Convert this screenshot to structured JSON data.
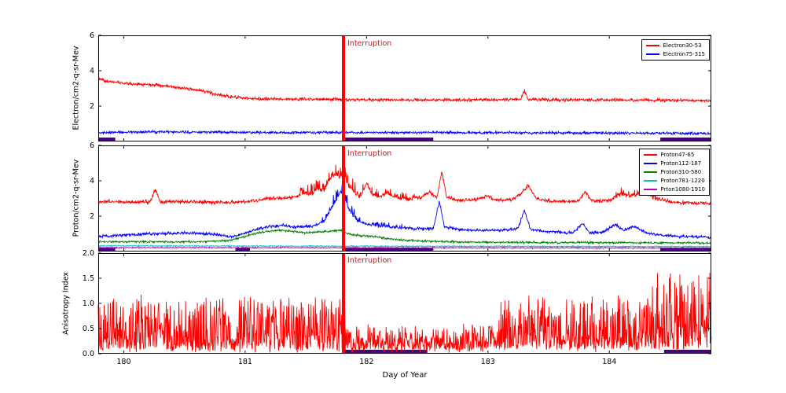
{
  "figure": {
    "background": "#ffffff",
    "axis_color": "#000000",
    "interruption_color": "#ff0000",
    "gap_bar_color": "#4b0082"
  },
  "chart_data": [
    {
      "type": "line",
      "ylabel": "Electron/cm2-q-sr-Mev",
      "annotation": "Interruption",
      "interruption_x": 181.81,
      "xlim": [
        179.79,
        184.84
      ],
      "ylim": [
        0,
        6
      ],
      "yticks": [
        2,
        4,
        6
      ],
      "ytick_decimals": 0,
      "xticks": [
        180,
        181,
        182,
        183,
        184
      ],
      "xtick_labels_visible": false,
      "legend_position": "upper right",
      "grid": false,
      "gap_bars": [
        [
          179.79,
          179.93
        ],
        [
          181.81,
          182.55
        ],
        [
          184.42,
          184.84
        ]
      ],
      "series": [
        {
          "name": "Electron30-53",
          "color": "#ff0000",
          "seed": 11,
          "noise": 0.05,
          "keypoints": [
            [
              179.79,
              3.55
            ],
            [
              179.88,
              3.38
            ],
            [
              180.0,
              3.3
            ],
            [
              180.15,
              3.22
            ],
            [
              180.3,
              3.18
            ],
            [
              180.45,
              3.05
            ],
            [
              180.6,
              2.92
            ],
            [
              180.7,
              2.78
            ],
            [
              180.8,
              2.62
            ],
            [
              180.9,
              2.52
            ],
            [
              181.0,
              2.45
            ],
            [
              181.15,
              2.42
            ],
            [
              181.3,
              2.4
            ],
            [
              181.6,
              2.38
            ],
            [
              182.0,
              2.36
            ],
            [
              182.5,
              2.35
            ],
            [
              183.0,
              2.36
            ],
            [
              183.27,
              2.38
            ],
            [
              183.3,
              2.88
            ],
            [
              183.33,
              2.38
            ],
            [
              183.6,
              2.35
            ],
            [
              184.0,
              2.35
            ],
            [
              184.5,
              2.33
            ],
            [
              184.84,
              2.3
            ]
          ],
          "bursts": []
        },
        {
          "name": "Electron75-315",
          "color": "#0000ff",
          "seed": 22,
          "noise": 0.045,
          "keypoints": [
            [
              179.79,
              0.5
            ],
            [
              180.3,
              0.55
            ],
            [
              180.8,
              0.52
            ],
            [
              181.3,
              0.5
            ],
            [
              182.0,
              0.5
            ],
            [
              183.0,
              0.5
            ],
            [
              184.0,
              0.48
            ],
            [
              184.84,
              0.45
            ]
          ],
          "bursts": []
        }
      ]
    },
    {
      "type": "line",
      "ylabel": "Proton/cm2-q-sr-Mev",
      "annotation": "Interruption",
      "interruption_x": 181.81,
      "xlim": [
        179.79,
        184.84
      ],
      "ylim": [
        0,
        6
      ],
      "yticks": [
        2,
        4,
        6
      ],
      "ytick_decimals": 0,
      "xticks": [
        180,
        181,
        182,
        183,
        184
      ],
      "xtick_labels_visible": false,
      "legend_position": "upper right",
      "grid": false,
      "gap_bars": [
        [
          179.79,
          179.93
        ],
        [
          180.92,
          181.04
        ],
        [
          181.81,
          182.55
        ],
        [
          184.42,
          184.84
        ]
      ],
      "series": [
        {
          "name": "Proton47-65",
          "color": "#ff0000",
          "seed": 31,
          "noise": 0.06,
          "keypoints": [
            [
              179.79,
              2.82
            ],
            [
              180.1,
              2.8
            ],
            [
              180.22,
              2.82
            ],
            [
              180.26,
              3.55
            ],
            [
              180.3,
              2.82
            ],
            [
              180.6,
              2.8
            ],
            [
              180.9,
              2.78
            ],
            [
              181.05,
              2.85
            ],
            [
              181.2,
              3.0
            ],
            [
              181.35,
              3.05
            ],
            [
              181.45,
              3.15
            ],
            [
              181.5,
              3.3
            ],
            [
              181.55,
              3.2
            ],
            [
              181.6,
              3.55
            ],
            [
              181.65,
              3.4
            ],
            [
              181.7,
              4.1
            ],
            [
              181.74,
              4.35
            ],
            [
              181.78,
              4.1
            ],
            [
              181.81,
              4.3
            ],
            [
              181.85,
              3.7
            ],
            [
              181.9,
              3.3
            ],
            [
              181.95,
              3.1
            ],
            [
              182.0,
              3.85
            ],
            [
              182.04,
              3.3
            ],
            [
              182.1,
              3.05
            ],
            [
              182.17,
              3.3
            ],
            [
              182.25,
              3.0
            ],
            [
              182.35,
              2.95
            ],
            [
              182.45,
              3.05
            ],
            [
              182.52,
              3.35
            ],
            [
              182.58,
              3.0
            ],
            [
              182.62,
              4.55
            ],
            [
              182.66,
              3.1
            ],
            [
              182.75,
              2.9
            ],
            [
              182.9,
              2.95
            ],
            [
              183.0,
              3.15
            ],
            [
              183.06,
              2.9
            ],
            [
              183.2,
              2.95
            ],
            [
              183.28,
              3.3
            ],
            [
              183.33,
              3.75
            ],
            [
              183.4,
              3.0
            ],
            [
              183.5,
              2.85
            ],
            [
              183.75,
              2.85
            ],
            [
              183.8,
              3.4
            ],
            [
              183.86,
              2.85
            ],
            [
              184.0,
              2.9
            ],
            [
              184.1,
              3.25
            ],
            [
              184.18,
              3.1
            ],
            [
              184.28,
              3.3
            ],
            [
              184.38,
              3.0
            ],
            [
              184.5,
              2.8
            ],
            [
              184.7,
              2.75
            ],
            [
              184.84,
              2.72
            ]
          ],
          "bursts": [
            [
              181.45,
              181.98,
              0.7,
              4
            ],
            [
              182.0,
              182.4,
              0.4,
              5
            ],
            [
              184.05,
              184.4,
              0.35,
              5
            ]
          ]
        },
        {
          "name": "Proton112-187",
          "color": "#0000ff",
          "seed": 32,
          "noise": 0.05,
          "keypoints": [
            [
              179.79,
              0.85
            ],
            [
              180.05,
              0.95
            ],
            [
              180.3,
              1.02
            ],
            [
              180.55,
              1.05
            ],
            [
              180.75,
              0.98
            ],
            [
              180.9,
              0.82
            ],
            [
              181.0,
              1.05
            ],
            [
              181.1,
              1.28
            ],
            [
              181.2,
              1.42
            ],
            [
              181.3,
              1.48
            ],
            [
              181.42,
              1.38
            ],
            [
              181.55,
              1.42
            ],
            [
              181.65,
              1.7
            ],
            [
              181.7,
              2.3
            ],
            [
              181.75,
              2.9
            ],
            [
              181.79,
              3.4
            ],
            [
              181.81,
              3.1
            ],
            [
              181.86,
              2.3
            ],
            [
              181.92,
              1.75
            ],
            [
              182.0,
              1.55
            ],
            [
              182.1,
              1.45
            ],
            [
              182.25,
              1.35
            ],
            [
              182.4,
              1.3
            ],
            [
              182.55,
              1.3
            ],
            [
              182.6,
              2.85
            ],
            [
              182.64,
              1.4
            ],
            [
              182.75,
              1.25
            ],
            [
              182.9,
              1.2
            ],
            [
              183.1,
              1.2
            ],
            [
              183.25,
              1.3
            ],
            [
              183.3,
              2.35
            ],
            [
              183.35,
              1.25
            ],
            [
              183.5,
              1.12
            ],
            [
              183.7,
              1.05
            ],
            [
              183.78,
              1.6
            ],
            [
              183.84,
              1.05
            ],
            [
              183.95,
              1.1
            ],
            [
              184.05,
              1.55
            ],
            [
              184.12,
              1.2
            ],
            [
              184.2,
              1.45
            ],
            [
              184.3,
              1.05
            ],
            [
              184.45,
              0.9
            ],
            [
              184.6,
              0.85
            ],
            [
              184.84,
              0.8
            ]
          ],
          "bursts": [
            [
              181.62,
              181.95,
              0.6,
              4
            ],
            [
              182.0,
              182.3,
              0.25,
              5
            ]
          ]
        },
        {
          "name": "Proton310-580",
          "color": "#008000",
          "seed": 33,
          "noise": 0.035,
          "keypoints": [
            [
              179.79,
              0.55
            ],
            [
              180.5,
              0.55
            ],
            [
              180.85,
              0.6
            ],
            [
              181.0,
              0.85
            ],
            [
              181.1,
              1.05
            ],
            [
              181.2,
              1.15
            ],
            [
              181.3,
              1.2
            ],
            [
              181.4,
              1.12
            ],
            [
              181.5,
              1.05
            ],
            [
              181.6,
              1.1
            ],
            [
              181.7,
              1.15
            ],
            [
              181.78,
              1.2
            ],
            [
              181.85,
              1.0
            ],
            [
              181.95,
              0.9
            ],
            [
              182.05,
              0.85
            ],
            [
              182.15,
              0.75
            ],
            [
              182.3,
              0.65
            ],
            [
              182.5,
              0.58
            ],
            [
              183.0,
              0.52
            ],
            [
              184.0,
              0.5
            ],
            [
              184.84,
              0.48
            ]
          ],
          "bursts": []
        },
        {
          "name": "Proton781-1220",
          "color": "#00c0c0",
          "seed": 34,
          "noise": 0.02,
          "keypoints": [
            [
              179.79,
              0.32
            ],
            [
              184.84,
              0.28
            ]
          ],
          "bursts": []
        },
        {
          "name": "Prton1080-1910",
          "color": "#c000c0",
          "seed": 35,
          "noise": 0.02,
          "keypoints": [
            [
              179.79,
              0.22
            ],
            [
              184.84,
              0.2
            ]
          ],
          "bursts": []
        }
      ]
    },
    {
      "type": "line",
      "ylabel": "Anisotropy Index",
      "xlabel": "Day of Year",
      "annotation": "Interruption",
      "interruption_x": 181.81,
      "xlim": [
        179.79,
        184.84
      ],
      "ylim": [
        0,
        2
      ],
      "yticks": [
        0,
        0.5,
        1,
        1.5,
        2
      ],
      "ytick_decimals": 1,
      "xticks": [
        180,
        181,
        182,
        183,
        184
      ],
      "xtick_labels_visible": true,
      "grid": false,
      "gap_bars": [
        [
          181.81,
          182.5
        ],
        [
          184.45,
          184.84
        ]
      ],
      "series": [
        {
          "name": "AnisotropyIndex",
          "color": "#ff0000",
          "seed": 41,
          "noise": 0.05,
          "keypoints": [
            [
              179.79,
              0.12
            ],
            [
              181.85,
              0.1
            ],
            [
              182.0,
              0.08
            ],
            [
              183.0,
              0.1
            ],
            [
              183.1,
              0.12
            ],
            [
              184.84,
              0.12
            ]
          ],
          "bursts": [
            [
              179.79,
              181.85,
              1.0,
              2
            ],
            [
              181.85,
              183.05,
              0.45,
              2
            ],
            [
              183.05,
              184.35,
              1.0,
              2
            ],
            [
              184.35,
              184.84,
              1.55,
              2.2
            ]
          ]
        }
      ]
    }
  ]
}
